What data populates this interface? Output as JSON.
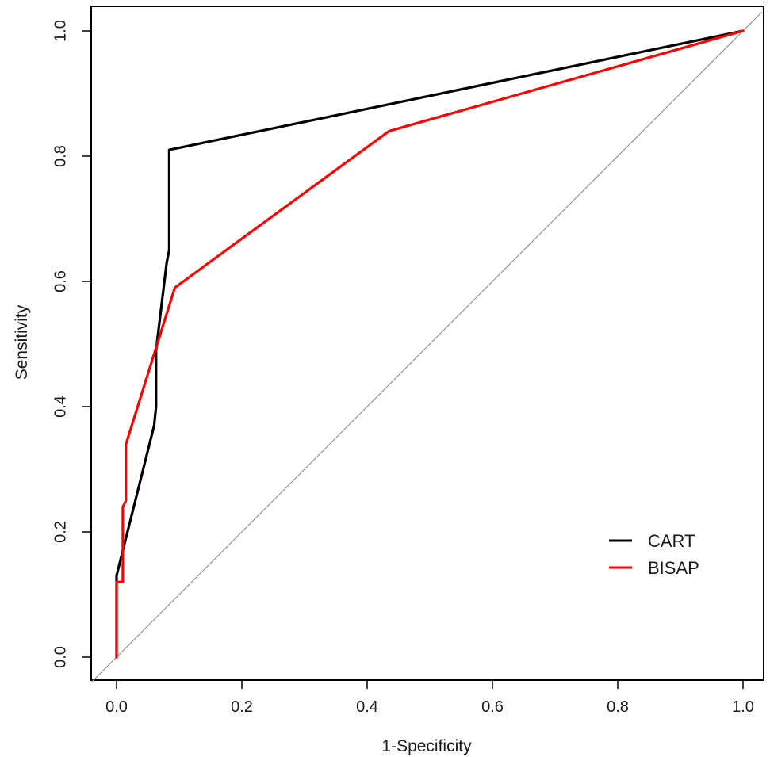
{
  "chart_data": {
    "type": "line",
    "title": "",
    "xlabel": "1-Specificity",
    "ylabel": "Sensitivity",
    "xlim": [
      0,
      1
    ],
    "ylim": [
      0,
      1
    ],
    "x_ticks": [
      "0.0",
      "0.2",
      "0.4",
      "0.6",
      "0.8",
      "1.0"
    ],
    "y_ticks": [
      "0.0",
      "0.2",
      "0.4",
      "0.6",
      "0.8",
      "1.0"
    ],
    "grid": false,
    "legend_position": "bottom-right",
    "reference_line": {
      "from": [
        0,
        0
      ],
      "to": [
        1,
        1
      ],
      "color": "#9a9a9a"
    },
    "series": [
      {
        "name": "CART",
        "color": "#000000",
        "points": [
          [
            0.0,
            0.0
          ],
          [
            0.0,
            0.13
          ],
          [
            0.005,
            0.15
          ],
          [
            0.06,
            0.37
          ],
          [
            0.063,
            0.4
          ],
          [
            0.063,
            0.49
          ],
          [
            0.08,
            0.63
          ],
          [
            0.084,
            0.65
          ],
          [
            0.084,
            0.81
          ],
          [
            1.0,
            1.0
          ]
        ]
      },
      {
        "name": "BISAP",
        "color": "#ff0000",
        "points": [
          [
            0.0,
            0.0
          ],
          [
            0.0,
            0.12
          ],
          [
            0.01,
            0.12
          ],
          [
            0.01,
            0.24
          ],
          [
            0.015,
            0.25
          ],
          [
            0.015,
            0.34
          ],
          [
            0.093,
            0.59
          ],
          [
            0.435,
            0.84
          ],
          [
            1.0,
            1.0
          ]
        ]
      }
    ]
  }
}
